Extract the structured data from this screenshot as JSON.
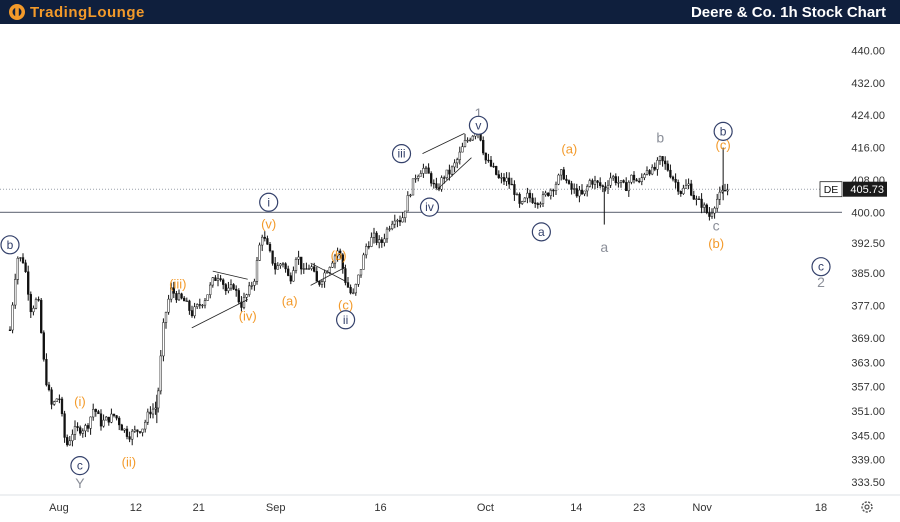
{
  "header": {
    "logo_text": "TradingLounge",
    "title": "Deere & Co. 1h Stock Chart"
  },
  "colors": {
    "header_bg": "#0f1f3d",
    "logo": "#f39a2a",
    "orange_label": "#f39a2a",
    "grey_label": "#8b8f99",
    "navy_label": "#34416b",
    "candle": "#111111"
  },
  "chart_data": {
    "type": "candlestick",
    "symbol": "DE",
    "last_price": 405.73,
    "last_price_label": "405.73",
    "ylim": [
      330.5,
      446.5
    ],
    "y_ticks": [
      440.0,
      432.0,
      424.0,
      416.0,
      408.0,
      400.0,
      392.5,
      385.0,
      377.0,
      369.0,
      363.0,
      357.0,
      351.0,
      345.0,
      339.0,
      333.5
    ],
    "y_tick_labels": [
      "440.00",
      "432.00",
      "424.00",
      "416.00",
      "408.00",
      "400.00",
      "392.50",
      "385.00",
      "377.00",
      "369.00",
      "363.00",
      "357.00",
      "351.00",
      "345.00",
      "339.00",
      "333.50"
    ],
    "x_range": [
      "2024-07-25",
      "2024-11-21"
    ],
    "x_ticks": [
      {
        "date": "2024-08-01",
        "label": "Aug"
      },
      {
        "date": "2024-08-12",
        "label": "12"
      },
      {
        "date": "2024-08-21",
        "label": "21"
      },
      {
        "date": "2024-09-01",
        "label": "Sep"
      },
      {
        "date": "2024-09-16",
        "label": "16"
      },
      {
        "date": "2024-10-01",
        "label": "Oct"
      },
      {
        "date": "2024-10-14",
        "label": "14"
      },
      {
        "date": "2024-10-23",
        "label": "23"
      },
      {
        "date": "2024-11-01",
        "label": "Nov"
      },
      {
        "date": "2024-11-18",
        "label": "18"
      }
    ],
    "support_level": 400.0,
    "price_path": [
      [
        "2024-07-25",
        371
      ],
      [
        "2024-07-26",
        389
      ],
      [
        "2024-07-27",
        388
      ],
      [
        "2024-07-28",
        376
      ],
      [
        "2024-07-29",
        379
      ],
      [
        "2024-07-30",
        360
      ],
      [
        "2024-07-31",
        352
      ],
      [
        "2024-08-01",
        355
      ],
      [
        "2024-08-02",
        342
      ],
      [
        "2024-08-03",
        346
      ],
      [
        "2024-08-05",
        347
      ],
      [
        "2024-08-06",
        352
      ],
      [
        "2024-08-07",
        348
      ],
      [
        "2024-08-09",
        350
      ],
      [
        "2024-08-10",
        347
      ],
      [
        "2024-08-11",
        345
      ],
      [
        "2024-08-13",
        347
      ],
      [
        "2024-08-14",
        351
      ],
      [
        "2024-08-15",
        352
      ],
      [
        "2024-08-16",
        373
      ],
      [
        "2024-08-17",
        381
      ],
      [
        "2024-08-18",
        379
      ],
      [
        "2024-08-19",
        378
      ],
      [
        "2024-08-20",
        375
      ],
      [
        "2024-08-21",
        377
      ],
      [
        "2024-08-22",
        379
      ],
      [
        "2024-08-23",
        383
      ],
      [
        "2024-08-24",
        385
      ],
      [
        "2024-08-25",
        380
      ],
      [
        "2024-08-26",
        382
      ],
      [
        "2024-08-27",
        377
      ],
      [
        "2024-08-28",
        380
      ],
      [
        "2024-08-29",
        384
      ],
      [
        "2024-08-30",
        395
      ],
      [
        "2024-09-01",
        386
      ],
      [
        "2024-09-02",
        388
      ],
      [
        "2024-09-03",
        383
      ],
      [
        "2024-09-04",
        390
      ],
      [
        "2024-09-05",
        385
      ],
      [
        "2024-09-06",
        387
      ],
      [
        "2024-09-07",
        382
      ],
      [
        "2024-09-08",
        385
      ],
      [
        "2024-09-09",
        388
      ],
      [
        "2024-09-10",
        391
      ],
      [
        "2024-09-11",
        383
      ],
      [
        "2024-09-12",
        379
      ],
      [
        "2024-09-13",
        385
      ],
      [
        "2024-09-14",
        392
      ],
      [
        "2024-09-15",
        394
      ],
      [
        "2024-09-16",
        392
      ],
      [
        "2024-09-17",
        396
      ],
      [
        "2024-09-18",
        399
      ],
      [
        "2024-09-19",
        398
      ],
      [
        "2024-09-20",
        404
      ],
      [
        "2024-09-21",
        409
      ],
      [
        "2024-09-22",
        411
      ],
      [
        "2024-09-23",
        409
      ],
      [
        "2024-09-24",
        405
      ],
      [
        "2024-09-25",
        409
      ],
      [
        "2024-09-26",
        410
      ],
      [
        "2024-09-27",
        413
      ],
      [
        "2024-09-28",
        417
      ],
      [
        "2024-09-29",
        419
      ],
      [
        "2024-09-30",
        421
      ],
      [
        "2024-10-01",
        413
      ],
      [
        "2024-10-02",
        411
      ],
      [
        "2024-10-03",
        408
      ],
      [
        "2024-10-04",
        408
      ],
      [
        "2024-10-05",
        406
      ],
      [
        "2024-10-06",
        401
      ],
      [
        "2024-10-07",
        404
      ],
      [
        "2024-10-08",
        403
      ],
      [
        "2024-10-09",
        403
      ],
      [
        "2024-10-10",
        405
      ],
      [
        "2024-10-11",
        407
      ],
      [
        "2024-10-12",
        410
      ],
      [
        "2024-10-13",
        406
      ],
      [
        "2024-10-15",
        404
      ],
      [
        "2024-10-16",
        408
      ],
      [
        "2024-10-18",
        406
      ],
      [
        "2024-10-19",
        409
      ],
      [
        "2024-10-21",
        406
      ],
      [
        "2024-10-22",
        409
      ],
      [
        "2024-10-23",
        407
      ],
      [
        "2024-10-24",
        411
      ],
      [
        "2024-10-25",
        410
      ],
      [
        "2024-10-26",
        413
      ],
      [
        "2024-10-27",
        411
      ],
      [
        "2024-10-28",
        408
      ],
      [
        "2024-10-29",
        405
      ],
      [
        "2024-10-30",
        407
      ],
      [
        "2024-10-31",
        403
      ],
      [
        "2024-11-01",
        402
      ],
      [
        "2024-11-02",
        399
      ],
      [
        "2024-11-03",
        403
      ],
      [
        "2024-11-04",
        405
      ],
      [
        "2024-11-05",
        406
      ]
    ],
    "wave_labels": [
      {
        "text": "b",
        "circled": true,
        "color": "navy",
        "date": "2024-07-25",
        "price": 392.0
      },
      {
        "text": "c",
        "circled": true,
        "color": "navy",
        "date": "2024-08-04",
        "price": 337.5
      },
      {
        "text": "Y",
        "circled": false,
        "color": "grey",
        "date": "2024-08-04",
        "price": 333.2
      },
      {
        "text": "(i)",
        "circled": false,
        "color": "orange",
        "date": "2024-08-04",
        "price": 353.5
      },
      {
        "text": "(ii)",
        "circled": false,
        "color": "orange",
        "date": "2024-08-11",
        "price": 338.5
      },
      {
        "text": "(iii)",
        "circled": false,
        "color": "orange",
        "date": "2024-08-18",
        "price": 382.5
      },
      {
        "text": "(iv)",
        "circled": false,
        "color": "orange",
        "date": "2024-08-28",
        "price": 374.5
      },
      {
        "text": "(v)",
        "circled": false,
        "color": "orange",
        "date": "2024-08-31",
        "price": 397.3
      },
      {
        "text": "i",
        "circled": true,
        "color": "navy",
        "date": "2024-08-31",
        "price": 402.5
      },
      {
        "text": "(a)",
        "circled": false,
        "color": "orange",
        "date": "2024-09-03",
        "price": 378.3
      },
      {
        "text": "(b)",
        "circled": false,
        "color": "orange",
        "date": "2024-09-10",
        "price": 389.5
      },
      {
        "text": "(c)",
        "circled": false,
        "color": "orange",
        "date": "2024-09-11",
        "price": 377.3
      },
      {
        "text": "ii",
        "circled": true,
        "color": "navy",
        "date": "2024-09-11",
        "price": 373.5
      },
      {
        "text": "iii",
        "circled": true,
        "color": "navy",
        "date": "2024-09-19",
        "price": 414.5
      },
      {
        "text": "iv",
        "circled": true,
        "color": "navy",
        "date": "2024-09-23",
        "price": 401.3
      },
      {
        "text": "1",
        "circled": false,
        "color": "grey",
        "date": "2024-09-30",
        "price": 424.5
      },
      {
        "text": "v",
        "circled": true,
        "color": "navy",
        "date": "2024-09-30",
        "price": 421.5
      },
      {
        "text": "a",
        "circled": true,
        "color": "navy",
        "date": "2024-10-09",
        "price": 395.2
      },
      {
        "text": "(a)",
        "circled": false,
        "color": "orange",
        "date": "2024-10-13",
        "price": 415.8
      },
      {
        "text": "a",
        "circled": false,
        "color": "grey",
        "date": "2024-10-18",
        "price": 391.5
      },
      {
        "text": "b",
        "circled": false,
        "color": "grey",
        "date": "2024-10-26",
        "price": 418.5
      },
      {
        "text": "b",
        "circled": true,
        "color": "navy",
        "date": "2024-11-04",
        "price": 420.0
      },
      {
        "text": "(c)",
        "circled": false,
        "color": "orange",
        "date": "2024-11-04",
        "price": 416.8
      },
      {
        "text": "c",
        "circled": false,
        "color": "grey",
        "date": "2024-11-03",
        "price": 396.8
      },
      {
        "text": "(b)",
        "circled": false,
        "color": "orange",
        "date": "2024-11-03",
        "price": 392.5
      },
      {
        "text": "c",
        "circled": true,
        "color": "navy",
        "date": "2024-11-18",
        "price": 386.6
      },
      {
        "text": "2",
        "circled": false,
        "color": "grey",
        "date": "2024-11-18",
        "price": 382.8
      }
    ],
    "channel_lines": [
      [
        [
          "2024-08-20",
          371.5
        ],
        [
          "2024-08-28",
          378.5
        ]
      ],
      [
        [
          "2024-08-23",
          385.5
        ],
        [
          "2024-08-28",
          383.5
        ]
      ],
      [
        [
          "2024-09-06",
          387.5
        ],
        [
          "2024-09-11",
          383.0
        ]
      ],
      [
        [
          "2024-09-06",
          382.0
        ],
        [
          "2024-09-11",
          386.5
        ]
      ],
      [
        [
          "2024-09-22",
          414.5
        ],
        [
          "2024-09-28",
          419.5
        ]
      ],
      [
        [
          "2024-09-24",
          405.5
        ],
        [
          "2024-09-29",
          413.5
        ]
      ]
    ]
  }
}
